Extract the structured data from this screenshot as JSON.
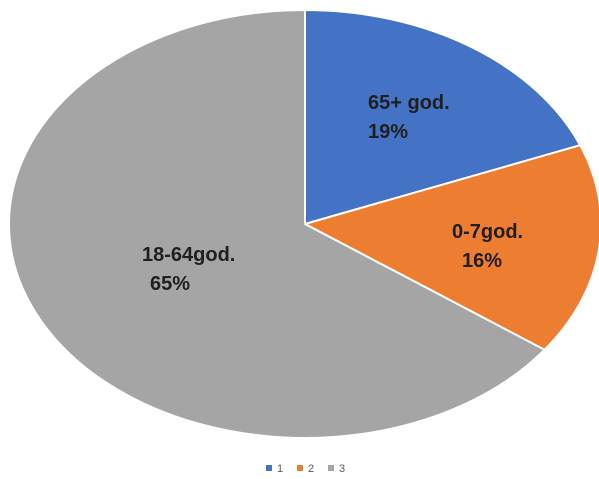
{
  "chart_data": {
    "type": "pie",
    "categories": [
      "1",
      "2",
      "3"
    ],
    "values": [
      19,
      16,
      65
    ],
    "colors": [
      "#4472C4",
      "#ED7D31",
      "#A5A5A5"
    ],
    "slice_labels": [
      {
        "name": "65+ god.",
        "percent": "19%"
      },
      {
        "name": "0-7god.",
        "percent": "16%"
      },
      {
        "name": "18-64god.",
        "percent": "65%"
      }
    ],
    "legend": [
      "1",
      "2",
      "3"
    ],
    "legend_position": "bottom"
  }
}
